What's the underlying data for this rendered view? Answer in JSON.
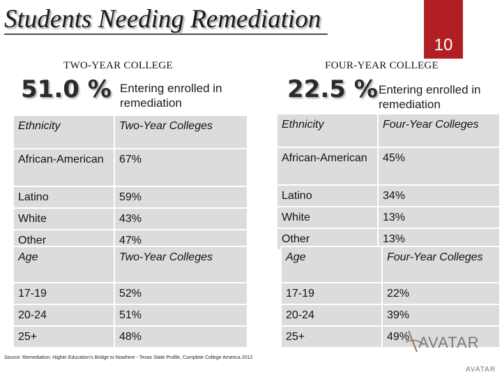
{
  "title": "Students Needing Remediation",
  "slide_number": "10",
  "two_year": {
    "heading": "TWO-YEAR COLLEGE",
    "percent": "51.0 %",
    "percent_desc": "Entering enrolled in remediation",
    "ethnicity_table": {
      "headers": [
        "Ethnicity",
        "Two-Year Colleges"
      ],
      "rows": [
        [
          "African-American",
          "67%"
        ],
        [
          "Latino",
          "59%"
        ],
        [
          "White",
          "43%"
        ],
        [
          "Other",
          "47%"
        ]
      ]
    },
    "age_table": {
      "headers": [
        "Age",
        "Two-Year Colleges"
      ],
      "rows": [
        [
          "17-19",
          "52%"
        ],
        [
          "20-24",
          "51%"
        ],
        [
          "25+",
          "48%"
        ]
      ]
    }
  },
  "four_year": {
    "heading": "FOUR-YEAR COLLEGE",
    "percent": "22.5 %",
    "percent_desc": "Entering enrolled in remediation",
    "ethnicity_table": {
      "headers": [
        "Ethnicity",
        "Four-Year Colleges"
      ],
      "rows": [
        [
          "African-American",
          "45%"
        ],
        [
          "Latino",
          "34%"
        ],
        [
          "White",
          "13%"
        ],
        [
          "Other",
          "13%"
        ]
      ]
    },
    "age_table": {
      "headers": [
        "Age",
        "Four-Year Colleges"
      ],
      "rows": [
        [
          "17-19",
          "22%"
        ],
        [
          "20-24",
          "39%"
        ],
        [
          "25+",
          "49%"
        ]
      ]
    }
  },
  "source": "Source: Remediation: Higher Education's Bridge to Nowhere - Texas State Profile, Complete College America 2012",
  "logo": {
    "text": "AVATAR",
    "color": "#7a7a7a"
  },
  "colors": {
    "slide_number_bg": "#b11f24",
    "table_cell_bg": "#dcdcdc"
  }
}
